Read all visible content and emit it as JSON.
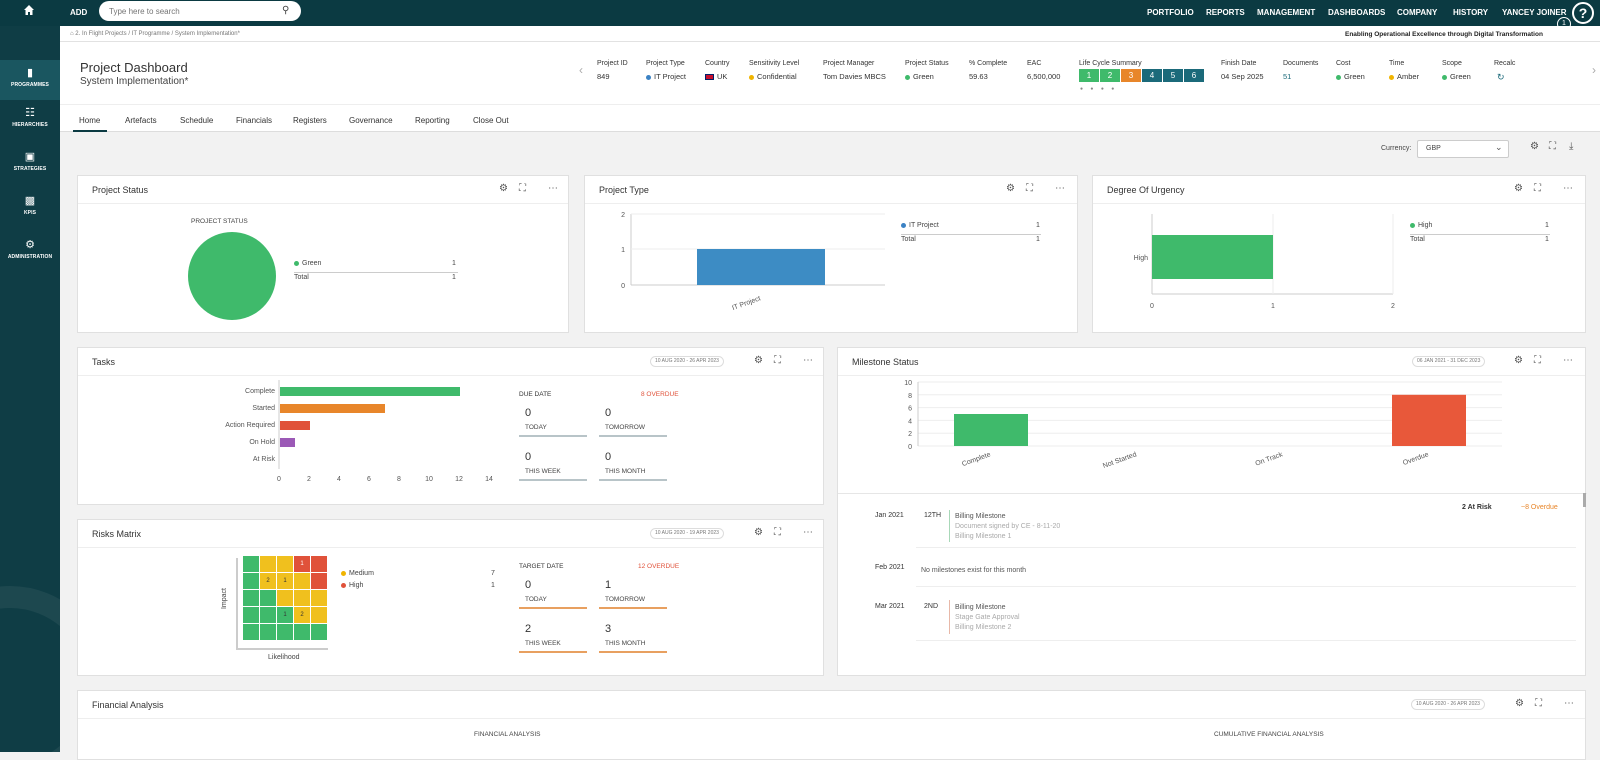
{
  "topbar": {
    "add_label": "ADD",
    "search_placeholder": "Type here to search",
    "nav": [
      "PORTFOLIO",
      "REPORTS",
      "MANAGEMENT",
      "DASHBOARDS",
      "COMPANY",
      "HISTORY",
      "YANCEY JOINER"
    ],
    "help": "?",
    "notif_count": "1"
  },
  "sidebar": {
    "items": [
      {
        "label": "PROGRAMMES",
        "icon": "folder-icon"
      },
      {
        "label": "HIERARCHIES",
        "icon": "hierarchy-icon"
      },
      {
        "label": "STRATEGIES",
        "icon": "briefcase-icon"
      },
      {
        "label": "KPIS",
        "icon": "bar-chart-icon"
      },
      {
        "label": "ADMINISTRATION",
        "icon": "gears-icon"
      }
    ]
  },
  "breadcrumb": "2. In Flight Projects / IT Programme / System Implementation*",
  "tagline": "Enabling Operational Excellence through Digital Transformation",
  "header": {
    "title": "Project Dashboard",
    "subtitle": "System Implementation*",
    "fields": [
      {
        "label": "Project ID",
        "value": "849"
      },
      {
        "label": "Project Type",
        "value": "IT Project",
        "color": "#3b82c4"
      },
      {
        "label": "Country",
        "value": "UK"
      },
      {
        "label": "Sensitivity Level",
        "value": "Confidential",
        "color": "#f0b400"
      },
      {
        "label": "Project Manager",
        "value": "Tom Davies MBCS"
      },
      {
        "label": "Project Status",
        "value": "Green",
        "color": "#3fba6b"
      },
      {
        "label": "% Complete",
        "value": "59.63"
      },
      {
        "label": "EAC",
        "value": "6,500,000"
      }
    ],
    "lifecycle_label": "Life Cycle Summary",
    "lifecycle": [
      {
        "n": "1",
        "color": "#3fba6b"
      },
      {
        "n": "2",
        "color": "#3fba6b"
      },
      {
        "n": "3",
        "color": "#e8862a"
      },
      {
        "n": "4",
        "color": "#1b6a7a"
      },
      {
        "n": "5",
        "color": "#1b6a7a"
      },
      {
        "n": "6",
        "color": "#1b6a7a"
      }
    ],
    "fields2": [
      {
        "label": "Finish Date",
        "value": "04 Sep 2025"
      },
      {
        "label": "Documents",
        "value": "51"
      },
      {
        "label": "Cost",
        "value": "Green",
        "color": "#3fba6b"
      },
      {
        "label": "Time",
        "value": "Amber",
        "color": "#f0b400"
      },
      {
        "label": "Scope",
        "value": "Green",
        "color": "#3fba6b"
      },
      {
        "label": "Recalc",
        "value": "↻"
      }
    ]
  },
  "tabs": [
    "Home",
    "Artefacts",
    "Schedule",
    "Financials",
    "Registers",
    "Governance",
    "Reporting",
    "Close Out"
  ],
  "currency": {
    "label": "Currency:",
    "value": "GBP"
  },
  "project_status": {
    "title": "Project Status",
    "chart_title": "PROJECT STATUS",
    "legend": [
      {
        "name": "Green",
        "value": "1",
        "color": "#3fba6b"
      }
    ],
    "total_label": "Total",
    "total": "1"
  },
  "project_type": {
    "title": "Project Type",
    "legend": [
      {
        "name": "IT Project",
        "value": "1",
        "color": "#3b82c4"
      }
    ],
    "total_label": "Total",
    "total": "1",
    "ticks": [
      "2",
      "1",
      "0"
    ],
    "category": "IT Project"
  },
  "urgency": {
    "title": "Degree Of Urgency",
    "legend": [
      {
        "name": "High",
        "value": "1",
        "color": "#3fba6b"
      }
    ],
    "total_label": "Total",
    "total": "1",
    "category": "High",
    "ticks": [
      "0",
      "1",
      "2"
    ]
  },
  "tasks": {
    "title": "Tasks",
    "date_range": "10 AUG 2020 - 26 APR 2023",
    "categories": [
      "Complete",
      "Started",
      "Action Required",
      "On Hold",
      "At Risk"
    ],
    "values": [
      12,
      7,
      2,
      1,
      0
    ],
    "colors": [
      "#3fba6b",
      "#e8862a",
      "#e0523a",
      "#9b59b6",
      "#999999"
    ],
    "ticks": [
      "0",
      "2",
      "4",
      "6",
      "8",
      "10",
      "12",
      "14"
    ],
    "due_label": "DUE DATE",
    "overdue": "8 OVERDUE",
    "boxes": [
      {
        "n": "0",
        "l": "TODAY"
      },
      {
        "n": "0",
        "l": "TOMORROW"
      },
      {
        "n": "0",
        "l": "THIS WEEK"
      },
      {
        "n": "0",
        "l": "THIS MONTH"
      }
    ]
  },
  "risks": {
    "title": "Risks Matrix",
    "date_range": "10 AUG 2020 - 19 APR 2023",
    "impact_label": "Impact",
    "likelihood_label": "Likelihood",
    "legend": [
      {
        "name": "Medium",
        "value": "7",
        "color": "#f0b400"
      },
      {
        "name": "High",
        "value": "1",
        "color": "#e0523a"
      }
    ],
    "matrix": [
      [
        "g",
        "y",
        "y",
        "r",
        "r"
      ],
      [
        "g",
        "y",
        "y",
        "y",
        "r"
      ],
      [
        "g",
        "g",
        "y",
        "y",
        "y"
      ],
      [
        "g",
        "g",
        "g",
        "y",
        "y"
      ],
      [
        "g",
        "g",
        "g",
        "g",
        "g"
      ]
    ],
    "labels": [
      [
        "",
        "",
        "",
        "1",
        ""
      ],
      [
        "",
        "2",
        "1",
        "",
        ""
      ],
      [
        "",
        "",
        "",
        "",
        ""
      ],
      [
        "",
        "",
        "1",
        "2",
        ""
      ],
      [
        "",
        "",
        "",
        "",
        ""
      ]
    ],
    "target_label": "TARGET DATE",
    "overdue": "12 OVERDUE",
    "boxes": [
      {
        "n": "0",
        "l": "TODAY"
      },
      {
        "n": "1",
        "l": "TOMORROW"
      },
      {
        "n": "2",
        "l": "THIS WEEK"
      },
      {
        "n": "3",
        "l": "THIS MONTH"
      }
    ]
  },
  "milestones": {
    "title": "Milestone Status",
    "date_range": "06 JAN 2021 - 31 DEC 2023",
    "categories": [
      "Complete",
      "Not Started",
      "On Track",
      "Overdue"
    ],
    "values": [
      5,
      0,
      0,
      8
    ],
    "colors": [
      "#3fba6b",
      "#999999",
      "#999999",
      "#e8583a"
    ],
    "ticks": [
      "10",
      "8",
      "6",
      "4",
      "2",
      "0"
    ],
    "at_risk": "2 At Risk",
    "overdue": "~8 Overdue",
    "entries": [
      {
        "month": "Jan 2021",
        "day": "12TH",
        "lines": [
          "Billing Milestone",
          "Document signed by CE - 8-11-20",
          "Billing Milestone 1"
        ]
      },
      {
        "month": "Feb 2021",
        "day": "",
        "lines": [
          "No milestones exist for this month"
        ]
      },
      {
        "month": "Mar 2021",
        "day": "2ND",
        "lines": [
          "Billing Milestone",
          "Stage Gate Approval",
          "Billing Milestone 2"
        ]
      }
    ]
  },
  "financial": {
    "title": "Financial Analysis",
    "date_range": "10 AUG 2020 - 26 APR 2023",
    "chart1": "FINANCIAL ANALYSIS",
    "chart2": "CUMULATIVE FINANCIAL ANALYSIS"
  }
}
